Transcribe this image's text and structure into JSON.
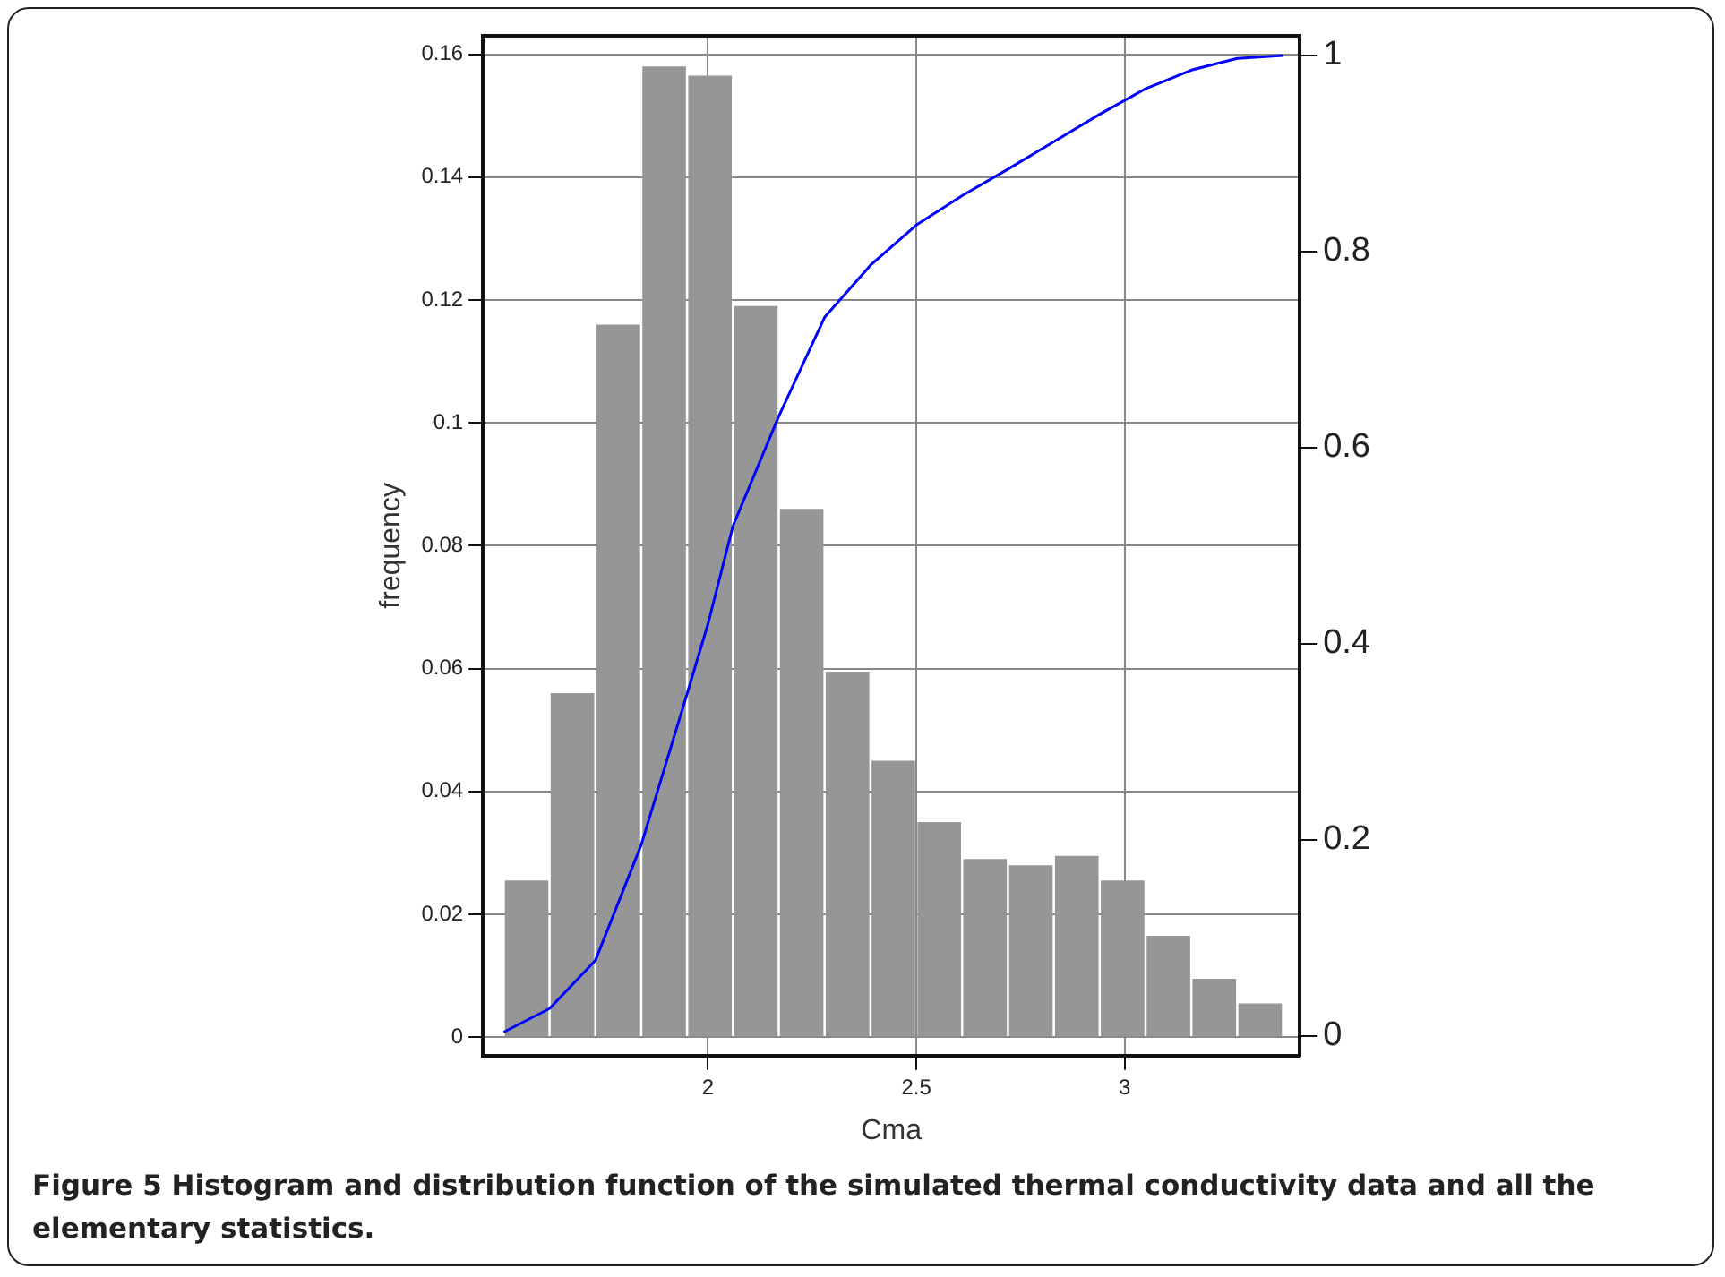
{
  "chart_data": {
    "type": "histogram",
    "xlabel": "Cma",
    "ylabel": "frequency",
    "bins": [
      1.51,
      1.62,
      1.73,
      1.84,
      1.95,
      2.06,
      2.17,
      2.28,
      2.39,
      2.5,
      2.61,
      2.72,
      2.83,
      2.94,
      3.05,
      3.16,
      3.27,
      3.38
    ],
    "values": [
      0.0255,
      0.056,
      0.116,
      0.158,
      0.1565,
      0.119,
      0.086,
      0.0595,
      0.045,
      0.035,
      0.029,
      0.028,
      0.0295,
      0.0255,
      0.0165,
      0.0095,
      0.0055
    ],
    "color": "#969696",
    "series": [
      {
        "type": "line",
        "axis": "y2",
        "color": "#0000ff",
        "x": [
          1.51,
          1.62,
          1.73,
          1.84,
          1.95,
          2.0,
          2.06,
          2.17,
          2.28,
          2.39,
          2.5,
          2.61,
          2.72,
          2.83,
          2.94,
          3.05,
          3.16,
          3.27,
          3.38
        ],
        "values": [
          0.004,
          0.028,
          0.077,
          0.195,
          0.349,
          0.42,
          0.52,
          0.632,
          0.733,
          0.786,
          0.827,
          0.857,
          0.884,
          0.912,
          0.94,
          0.966,
          0.985,
          0.997,
          1.0
        ]
      }
    ],
    "xlim": [
      1.46,
      3.42
    ],
    "xticks": [
      2,
      2.5,
      3
    ],
    "ylim": [
      -0.003,
      0.163
    ],
    "yticks": [
      0,
      0.02,
      0.04,
      0.06,
      0.08,
      0.1,
      0.12,
      0.14,
      0.16
    ],
    "y2lim": [
      -0.02,
      1.02
    ],
    "y2ticks": [
      0,
      0.2,
      0.4,
      0.6,
      0.8,
      1
    ],
    "grid": true,
    "annotations": [
      "Figure 5 Histogram and distribution function of the simulated thermal conductivity data and all the elementary statistics."
    ]
  }
}
